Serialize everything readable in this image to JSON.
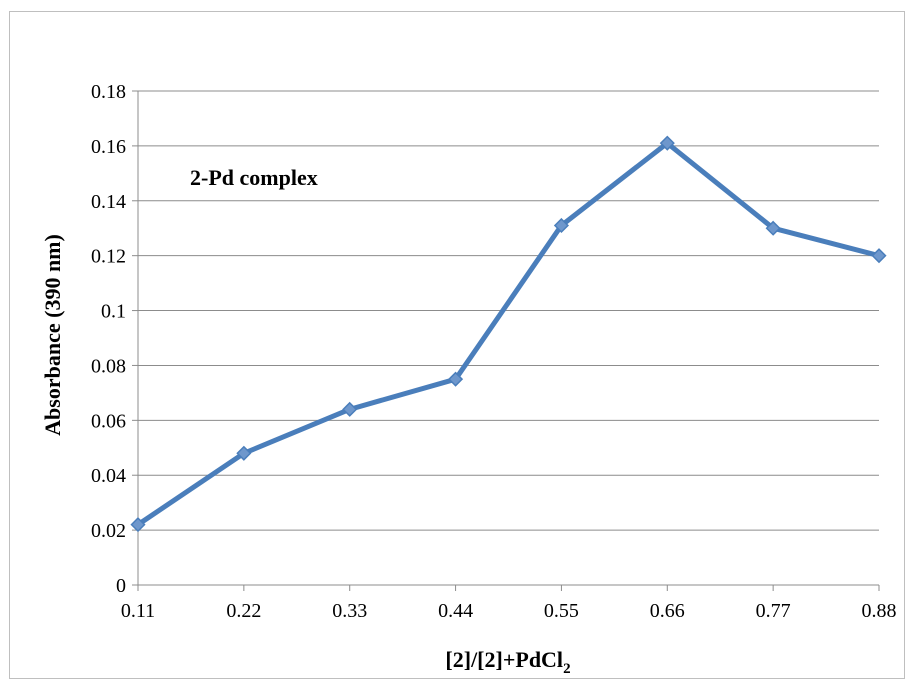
{
  "chart_data": {
    "type": "line",
    "title": "",
    "annotation": "2-Pd complex",
    "xlabel": "[2]/[2]+PdCl",
    "xlabel_subscript": "2",
    "ylabel": "Absorbance (390 nm)",
    "categories": [
      "0.11",
      "0.22",
      "0.33",
      "0.44",
      "0.55",
      "0.66",
      "0.77",
      "0.88"
    ],
    "series": [
      {
        "values": [
          0.022,
          0.048,
          0.064,
          0.075,
          0.131,
          0.161,
          0.13,
          0.12
        ]
      }
    ],
    "ylim": [
      0,
      0.18
    ],
    "yticks": [
      "0",
      "0.02",
      "0.04",
      "0.06",
      "0.08",
      "0.1",
      "0.12",
      "0.14",
      "0.16",
      "0.18"
    ],
    "grid": "horizontal",
    "legend": "none",
    "colors": {
      "line": "#4a7ebb",
      "marker": "#6e97cc",
      "marker_stroke": "#4a7ebb",
      "grid": "#8c8c8c",
      "axis": "#8c8c8c"
    }
  }
}
